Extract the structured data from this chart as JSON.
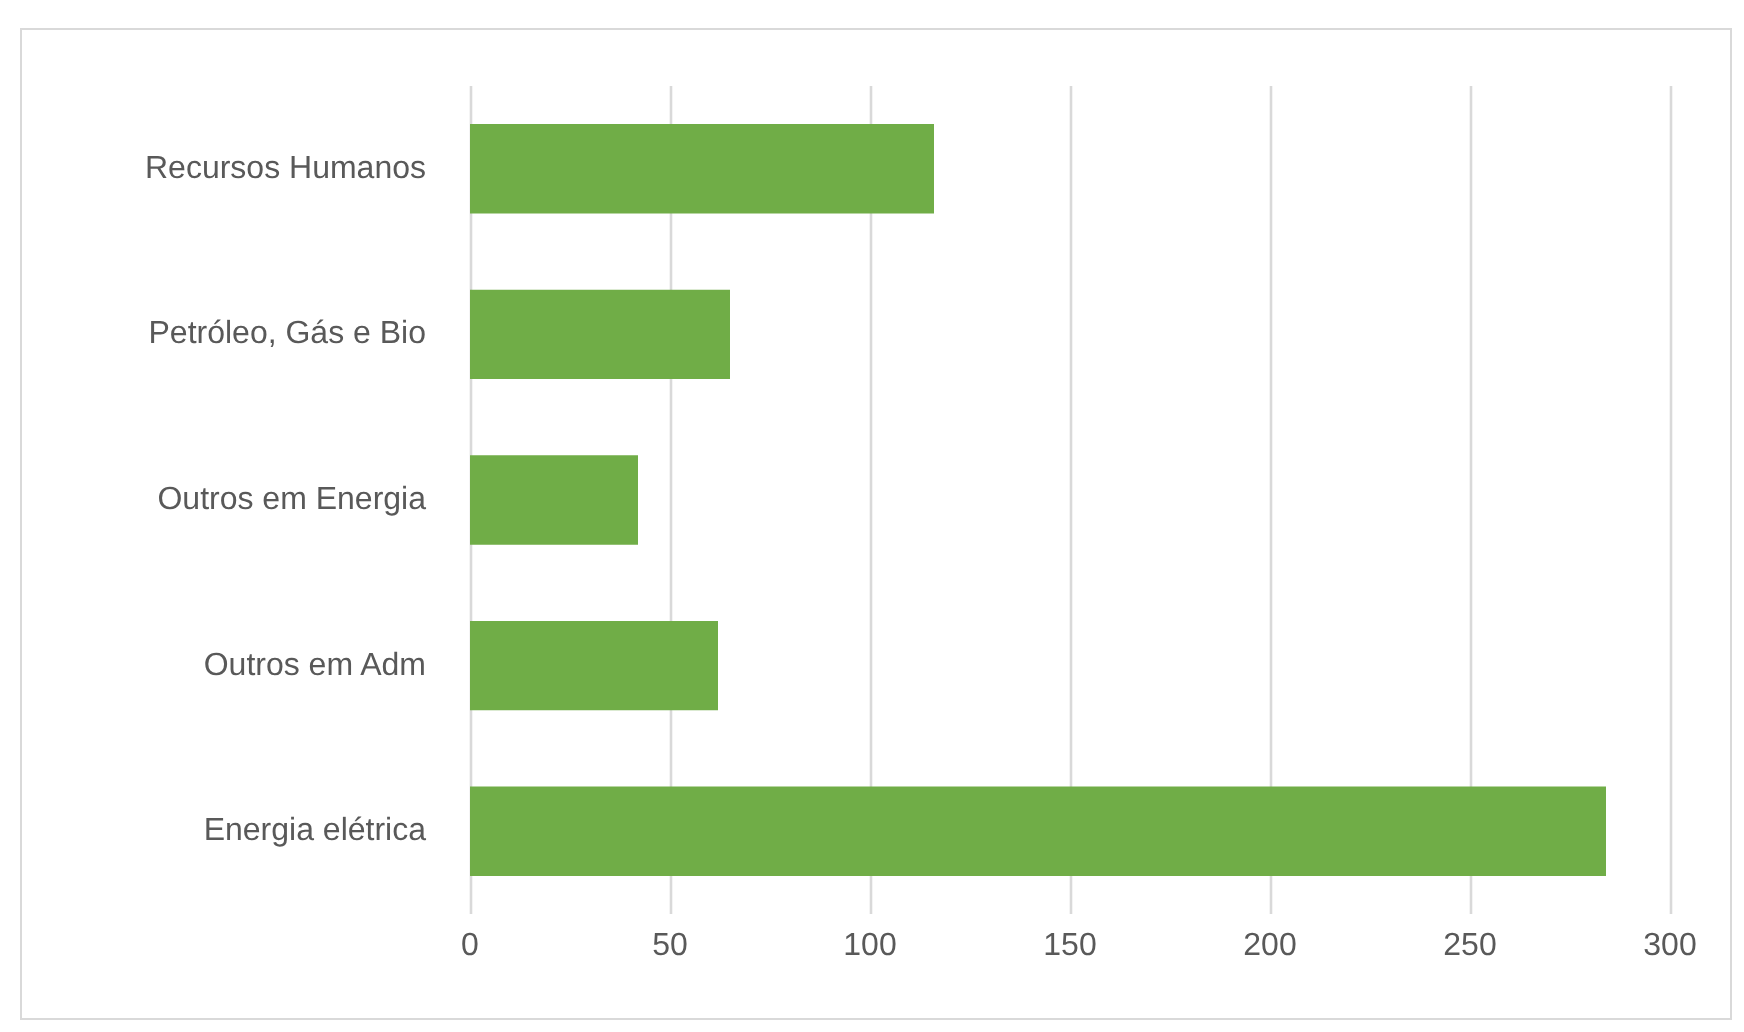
{
  "chart_data": {
    "type": "bar",
    "orientation": "horizontal",
    "categories": [
      "Recursos Humanos",
      "Petróleo, Gás e Bio",
      "Outros em Energia",
      "Outros em Adm",
      "Energia elétrica"
    ],
    "values": [
      116,
      65,
      42,
      62,
      284
    ],
    "color": "#70ad47",
    "xlim": [
      0,
      300
    ],
    "xticks": [
      0,
      50,
      100,
      150,
      200,
      250,
      300
    ],
    "grid": "x"
  }
}
